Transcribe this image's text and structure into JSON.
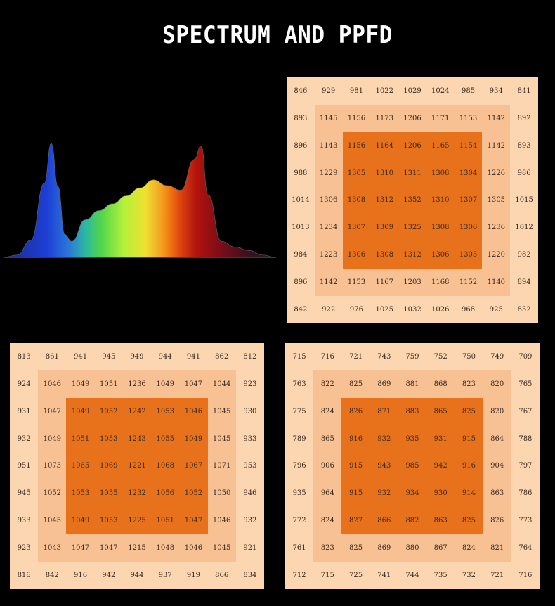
{
  "title": "SPECTRUM AND PPFD",
  "chart_data": [
    {
      "type": "area",
      "title": "",
      "xlabel": "",
      "ylabel": "",
      "x": [
        380,
        400,
        420,
        440,
        450,
        460,
        470,
        480,
        500,
        520,
        540,
        560,
        580,
        600,
        620,
        640,
        660,
        670,
        680,
        700,
        720,
        740,
        760,
        780
      ],
      "values": [
        0.0,
        0.02,
        0.15,
        0.65,
        1.0,
        0.62,
        0.2,
        0.14,
        0.33,
        0.41,
        0.47,
        0.54,
        0.61,
        0.68,
        0.63,
        0.59,
        0.86,
        0.98,
        0.55,
        0.14,
        0.09,
        0.06,
        0.02,
        0.0
      ],
      "grid": false
    },
    {
      "type": "heatmap",
      "values": [
        [
          846,
          929,
          981,
          1022,
          1029,
          1024,
          985,
          934,
          841
        ],
        [
          893,
          1145,
          1156,
          1173,
          1206,
          1171,
          1153,
          1142,
          892
        ],
        [
          896,
          1143,
          1156,
          1164,
          1206,
          1165,
          1154,
          1142,
          893
        ],
        [
          988,
          1229,
          1305,
          1310,
          1311,
          1308,
          1304,
          1226,
          986
        ],
        [
          1014,
          1306,
          1308,
          1312,
          1352,
          1310,
          1307,
          1305,
          1015
        ],
        [
          1013,
          1234,
          1307,
          1309,
          1325,
          1308,
          1306,
          1236,
          1012
        ],
        [
          984,
          1223,
          1306,
          1308,
          1312,
          1306,
          1305,
          1220,
          982
        ],
        [
          896,
          1142,
          1153,
          1167,
          1203,
          1168,
          1152,
          1140,
          894
        ],
        [
          842,
          922,
          976,
          1025,
          1032,
          1026,
          968,
          925,
          852
        ]
      ]
    },
    {
      "type": "heatmap",
      "values": [
        [
          813,
          861,
          941,
          945,
          949,
          944,
          941,
          862,
          812
        ],
        [
          924,
          1046,
          1049,
          1051,
          1236,
          1049,
          1047,
          1044,
          923
        ],
        [
          931,
          1047,
          1049,
          1052,
          1242,
          1053,
          1046,
          1045,
          930
        ],
        [
          932,
          1049,
          1051,
          1053,
          1243,
          1055,
          1049,
          1045,
          933
        ],
        [
          951,
          1073,
          1065,
          1069,
          1221,
          1068,
          1067,
          1071,
          953
        ],
        [
          945,
          1052,
          1053,
          1055,
          1232,
          1056,
          1052,
          1050,
          946
        ],
        [
          933,
          1045,
          1049,
          1053,
          1225,
          1051,
          1047,
          1046,
          932
        ],
        [
          923,
          1043,
          1047,
          1047,
          1215,
          1048,
          1046,
          1045,
          921
        ],
        [
          816,
          842,
          916,
          942,
          944,
          937,
          919,
          866,
          834
        ]
      ]
    },
    {
      "type": "heatmap",
      "values": [
        [
          715,
          716,
          721,
          743,
          759,
          752,
          750,
          749,
          709
        ],
        [
          763,
          822,
          825,
          869,
          881,
          868,
          823,
          820,
          765
        ],
        [
          775,
          824,
          826,
          871,
          883,
          865,
          825,
          820,
          767
        ],
        [
          789,
          865,
          916,
          932,
          935,
          931,
          915,
          864,
          788
        ],
        [
          796,
          906,
          915,
          943,
          985,
          942,
          916,
          904,
          797
        ],
        [
          935,
          964,
          915,
          932,
          934,
          930,
          914,
          863,
          786
        ],
        [
          772,
          824,
          827,
          866,
          882,
          863,
          825,
          826,
          773
        ],
        [
          761,
          823,
          825,
          869,
          880,
          867,
          824,
          821,
          764
        ],
        [
          712,
          715,
          725,
          741,
          744,
          735,
          732,
          721,
          716
        ]
      ]
    }
  ],
  "colors": {
    "outer": "#fbd6b0",
    "middle": "#f8c193",
    "inner": "#e8721c"
  }
}
